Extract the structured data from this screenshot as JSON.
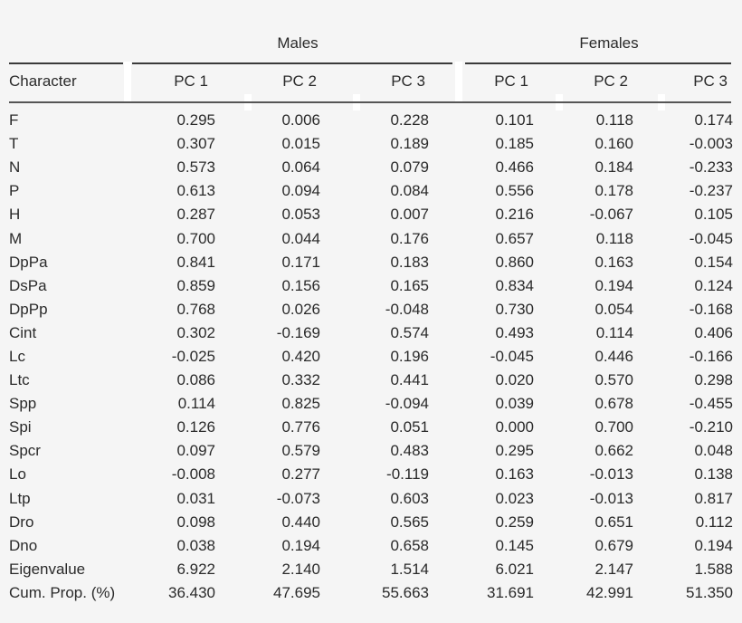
{
  "groups": {
    "males": "Males",
    "females": "Females"
  },
  "headers": {
    "character": "Character",
    "m_pc1": "PC 1",
    "m_pc2": "PC 2",
    "m_pc3": "PC 3",
    "f_pc1": "PC 1",
    "f_pc2": "PC 2",
    "f_pc3": "PC 3"
  },
  "rows": [
    {
      "character": "F",
      "values": [
        "0.295",
        "0.006",
        "0.228",
        "0.101",
        "0.118",
        "0.174"
      ]
    },
    {
      "character": "T",
      "values": [
        "0.307",
        "0.015",
        "0.189",
        "0.185",
        "0.160",
        "-0.003"
      ]
    },
    {
      "character": "N",
      "values": [
        "0.573",
        "0.064",
        "0.079",
        "0.466",
        "0.184",
        "-0.233"
      ]
    },
    {
      "character": "P",
      "values": [
        "0.613",
        "0.094",
        "0.084",
        "0.556",
        "0.178",
        "-0.237"
      ]
    },
    {
      "character": "H",
      "values": [
        "0.287",
        "0.053",
        "0.007",
        "0.216",
        "-0.067",
        "0.105"
      ]
    },
    {
      "character": "M",
      "values": [
        "0.700",
        "0.044",
        "0.176",
        "0.657",
        "0.118",
        "-0.045"
      ]
    },
    {
      "character": "DpPa",
      "values": [
        "0.841",
        "0.171",
        "0.183",
        "0.860",
        "0.163",
        "0.154"
      ]
    },
    {
      "character": "DsPa",
      "values": [
        "0.859",
        "0.156",
        "0.165",
        "0.834",
        "0.194",
        "0.124"
      ]
    },
    {
      "character": "DpPp",
      "values": [
        "0.768",
        "0.026",
        "-0.048",
        "0.730",
        "0.054",
        "-0.168"
      ]
    },
    {
      "character": "Cint",
      "values": [
        "0.302",
        "-0.169",
        "0.574",
        "0.493",
        "0.114",
        "0.406"
      ]
    },
    {
      "character": "Lc",
      "values": [
        "-0.025",
        "0.420",
        "0.196",
        "-0.045",
        "0.446",
        "-0.166"
      ]
    },
    {
      "character": "Ltc",
      "values": [
        "0.086",
        "0.332",
        "0.441",
        "0.020",
        "0.570",
        "0.298"
      ]
    },
    {
      "character": "Spp",
      "values": [
        "0.114",
        "0.825",
        "-0.094",
        "0.039",
        "0.678",
        "-0.455"
      ]
    },
    {
      "character": "Spi",
      "values": [
        "0.126",
        "0.776",
        "0.051",
        "0.000",
        "0.700",
        "-0.210"
      ]
    },
    {
      "character": "Spcr",
      "values": [
        "0.097",
        "0.579",
        "0.483",
        "0.295",
        "0.662",
        "0.048"
      ]
    },
    {
      "character": "Lo",
      "values": [
        "-0.008",
        "0.277",
        "-0.119",
        "0.163",
        "-0.013",
        "0.138"
      ]
    },
    {
      "character": "Ltp",
      "values": [
        "0.031",
        "-0.073",
        "0.603",
        "0.023",
        "-0.013",
        "0.817"
      ]
    },
    {
      "character": "Dro",
      "values": [
        "0.098",
        "0.440",
        "0.565",
        "0.259",
        "0.651",
        "0.112"
      ]
    },
    {
      "character": "Dno",
      "values": [
        "0.038",
        "0.194",
        "0.658",
        "0.145",
        "0.679",
        "0.194"
      ]
    },
    {
      "character": "Eigenvalue",
      "values": [
        "6.922",
        "2.140",
        "1.514",
        "6.021",
        "2.147",
        "1.588"
      ]
    },
    {
      "character": "Cum. Prop. (%)",
      "values": [
        "36.430",
        "47.695",
        "55.663",
        "31.691",
        "42.991",
        "51.350"
      ]
    }
  ]
}
